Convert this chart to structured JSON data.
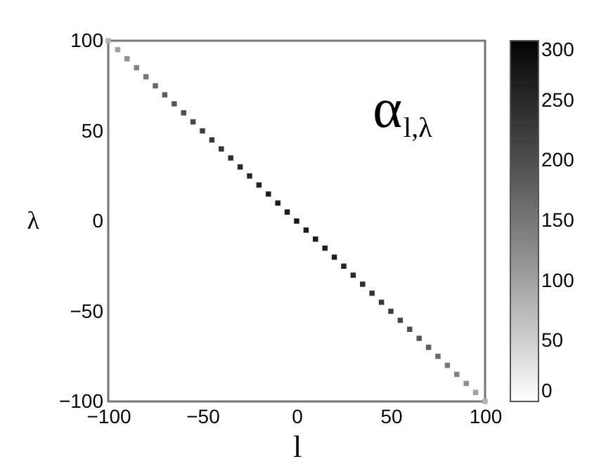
{
  "chart_data": {
    "type": "scatter",
    "xlabel": "l",
    "ylabel": "λ",
    "annotations": [
      "α$_{l,λ}$"
    ],
    "x": [
      -100,
      -95,
      -90,
      -85,
      -80,
      -75,
      -70,
      -65,
      -60,
      -55,
      -50,
      -45,
      -40,
      -35,
      -30,
      -25,
      -20,
      -15,
      -10,
      -5,
      0,
      5,
      10,
      15,
      20,
      25,
      30,
      35,
      40,
      45,
      50,
      55,
      60,
      65,
      70,
      75,
      80,
      85,
      90,
      95,
      100
    ],
    "values": [
      100,
      95,
      90,
      85,
      80,
      75,
      70,
      65,
      60,
      55,
      50,
      45,
      40,
      35,
      30,
      25,
      20,
      15,
      10,
      5,
      0,
      -5,
      -10,
      -15,
      -20,
      -25,
      -30,
      -35,
      -40,
      -45,
      -50,
      -55,
      -60,
      -65,
      -70,
      -75,
      -80,
      -85,
      -90,
      -95,
      -100
    ],
    "cvalues": [
      80,
      100,
      120,
      135,
      150,
      165,
      180,
      190,
      200,
      210,
      220,
      230,
      235,
      240,
      250,
      255,
      260,
      265,
      270,
      270,
      275,
      270,
      270,
      265,
      260,
      255,
      250,
      240,
      235,
      230,
      220,
      210,
      200,
      190,
      180,
      165,
      150,
      135,
      120,
      100,
      80
    ],
    "xlim": [
      -100,
      100
    ],
    "ylim": [
      -100,
      100
    ],
    "xticks": [
      -100,
      -50,
      0,
      50,
      100
    ],
    "yticks": [
      -100,
      -50,
      0,
      50,
      100
    ],
    "clim": [
      0,
      300
    ],
    "cticks": [
      0,
      50,
      100,
      150,
      200,
      250,
      300
    ],
    "marker": "square"
  }
}
